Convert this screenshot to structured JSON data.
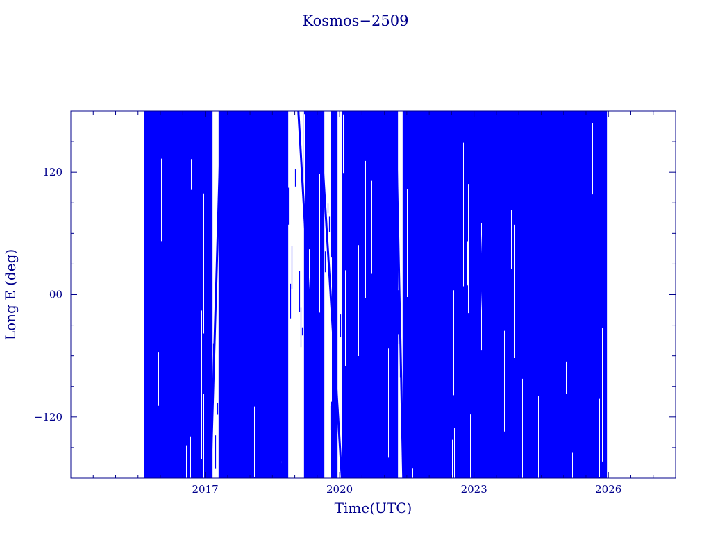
{
  "chart_data": {
    "type": "scatter",
    "title": "Kosmos−2509",
    "xlabel": "Time(UTC)",
    "ylabel": "Long E (deg)",
    "x_unit": "year",
    "xlim": [
      2014.0,
      2027.5
    ],
    "ylim": [
      -180,
      180
    ],
    "x_ticks": [
      {
        "value": 2017,
        "label": "2017"
      },
      {
        "value": 2020,
        "label": "2020"
      },
      {
        "value": 2023,
        "label": "2023"
      },
      {
        "value": 2026,
        "label": "2026"
      }
    ],
    "y_ticks": [
      {
        "value": 120,
        "label": "120"
      },
      {
        "value": 0,
        "label": "00"
      },
      {
        "value": -120,
        "label": "−120"
      }
    ],
    "x_minor_step": 0.5,
    "y_minor_step": 30,
    "grid": false,
    "series": [
      {
        "color": "#0000ff",
        "data_start": 2015.65,
        "data_end": 2025.95,
        "coverage": "longitude samples fill the full -180 to 180 range across the data span",
        "sparse_intervals": [
          [
            2017.15,
            2017.3
          ],
          [
            2018.85,
            2019.2
          ],
          [
            2019.65,
            2019.8
          ],
          [
            2019.95,
            2020.05
          ],
          [
            2021.3,
            2021.4
          ]
        ],
        "drift_lines": [
          {
            "x": [
              2017.12,
              2017.36
            ],
            "y": [
              -180,
              180
            ]
          },
          {
            "x": [
              2017.95,
              2018.72
            ],
            "y": [
              180,
              -180
            ]
          },
          {
            "x": [
              2019.08,
              2019.55
            ],
            "y": [
              180,
              -180
            ]
          },
          {
            "x": [
              2019.55,
              2020.05
            ],
            "y": [
              180,
              -180
            ]
          },
          {
            "x": [
              2021.25,
              2021.42
            ],
            "y": [
              180,
              -180
            ]
          },
          {
            "x": [
              2023.0,
              2023.3
            ],
            "y": [
              -180,
              180
            ]
          },
          {
            "x": [
              2024.2,
              2024.45
            ],
            "y": [
              -180,
              180
            ]
          }
        ]
      }
    ],
    "colors": {
      "axis": "#00008b",
      "data": "#0000ff",
      "background": "#ffffff"
    }
  }
}
